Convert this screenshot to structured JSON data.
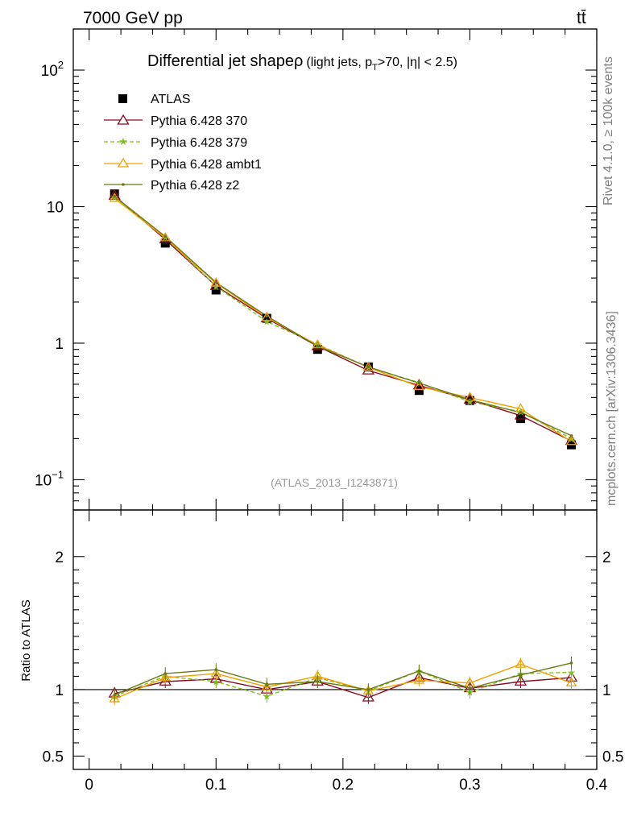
{
  "header": {
    "energy_label": "7000 GeV pp",
    "process_label": "tt̄"
  },
  "side": {
    "rivet_label": "Rivet 4.1.0, ≥ 100k events",
    "source_label": "mcplots.cern.ch [arXiv:1306.3436]"
  },
  "chart_data": [
    {
      "panel": "main",
      "type": "line",
      "title": "Differential jet shape",
      "title_symbol": "ρ",
      "subtitle_prefix": "(light jets, p",
      "subtitle_sub": "T",
      "subtitle_suffix": ">70, |η| < 2.5)",
      "analysis_id": "(ATLAS_2013_I1243871)",
      "yscale": "log",
      "ylim": [
        0.06,
        200
      ],
      "xlim": [
        -0.0125,
        0.4
      ],
      "yticks": [
        {
          "value": 100,
          "base": "10",
          "exp": "2"
        },
        {
          "value": 10,
          "base": "10",
          "exp": ""
        },
        {
          "value": 1,
          "base": "1",
          "exp": ""
        },
        {
          "value": 0.1,
          "base": "10",
          "exp": "−1"
        }
      ],
      "x": [
        0.02,
        0.06,
        0.1,
        0.14,
        0.18,
        0.22,
        0.26,
        0.3,
        0.34,
        0.38
      ],
      "series": [
        {
          "name": "ATLAS",
          "color": "#000000",
          "marker": "square",
          "dash": "",
          "values": [
            12.4,
            5.4,
            2.45,
            1.52,
            0.9,
            0.67,
            0.45,
            0.38,
            0.28,
            0.18
          ]
        },
        {
          "name": "Pythia 6.428 370",
          "color": "#8b0a1e",
          "marker": "triangle-open",
          "dash": "",
          "values": [
            12.0,
            5.75,
            2.62,
            1.52,
            0.95,
            0.63,
            0.49,
            0.385,
            0.295,
            0.192
          ]
        },
        {
          "name": "Pythia 6.428 379",
          "color": "#7fbf1f",
          "marker": "star",
          "dash": "5,3",
          "values": [
            11.8,
            5.95,
            2.6,
            1.44,
            0.98,
            0.665,
            0.515,
            0.372,
            0.315,
            0.2
          ]
        },
        {
          "name": "Pythia 6.428 ambt1",
          "color": "#f0a000",
          "marker": "triangle-open",
          "dash": "",
          "values": [
            11.5,
            5.9,
            2.75,
            1.54,
            0.97,
            0.665,
            0.48,
            0.4,
            0.33,
            0.19
          ]
        },
        {
          "name": "Pythia 6.428 z2",
          "color": "#6b7a14",
          "marker": "dot",
          "dash": "",
          "values": [
            11.9,
            6.05,
            2.78,
            1.58,
            0.95,
            0.67,
            0.51,
            0.385,
            0.31,
            0.21
          ]
        }
      ]
    },
    {
      "panel": "ratio",
      "type": "line",
      "ylabel": "Ratio to ATLAS",
      "ylim": [
        0.4,
        2.35
      ],
      "yticks": [
        {
          "value": 2,
          "label": "2"
        },
        {
          "value": 1,
          "label": "1"
        },
        {
          "value": 0.5,
          "label": "0.5"
        }
      ],
      "xticks": [
        {
          "value": 0,
          "label": "0"
        },
        {
          "value": 0.1,
          "label": "0.1"
        },
        {
          "value": 0.2,
          "label": "0.2"
        },
        {
          "value": 0.3,
          "label": "0.3"
        },
        {
          "value": 0.4,
          "label": "0.4"
        }
      ],
      "x": [
        0.02,
        0.06,
        0.1,
        0.14,
        0.18,
        0.22,
        0.26,
        0.3,
        0.34,
        0.38
      ],
      "series": [
        {
          "name": "Pythia 6.428 370",
          "values": [
            0.97,
            1.06,
            1.08,
            1.0,
            1.06,
            0.94,
            1.09,
            1.01,
            1.06,
            1.09
          ]
        },
        {
          "name": "Pythia 6.428 379",
          "values": [
            0.95,
            1.1,
            1.06,
            0.95,
            1.09,
            0.99,
            1.14,
            0.98,
            1.12,
            1.13
          ]
        },
        {
          "name": "Pythia 6.428 ambt1",
          "values": [
            0.93,
            1.09,
            1.12,
            1.02,
            1.1,
            0.99,
            1.07,
            1.05,
            1.19,
            1.05
          ]
        },
        {
          "name": "Pythia 6.428 z2",
          "values": [
            0.96,
            1.12,
            1.15,
            1.04,
            1.06,
            1.0,
            1.14,
            1.01,
            1.11,
            1.2
          ]
        }
      ]
    }
  ]
}
